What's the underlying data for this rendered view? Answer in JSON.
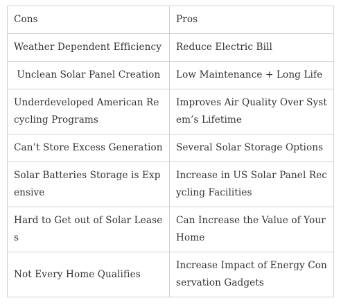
{
  "table": {
    "headers": {
      "cons": "Cons",
      "pros": "Pros"
    },
    "rows": [
      {
        "cons": "Weather Dependent Efficiency",
        "pros": "Reduce Electric Bill"
      },
      {
        "cons": " Unclean Solar Panel Creation",
        "pros": "Low Maintenance + Long Life"
      },
      {
        "cons": "Underdeveloped American Recycling Programs",
        "pros": "Improves Air Quality Over System’s Lifetime"
      },
      {
        "cons": "Can’t Store Excess Generation",
        "pros": "Several Solar Storage Options"
      },
      {
        "cons": "Solar Batteries Storage is Expensive",
        "pros": "Increase in US Solar Panel Recycling Facilities"
      },
      {
        "cons": "Hard to Get out of Solar Leases",
        "pros": "Can Increase the Value of Your Home"
      },
      {
        "cons": "Not Every Home Qualifies",
        "pros": "Increase Impact of Energy Conservation Gadgets"
      }
    ]
  }
}
